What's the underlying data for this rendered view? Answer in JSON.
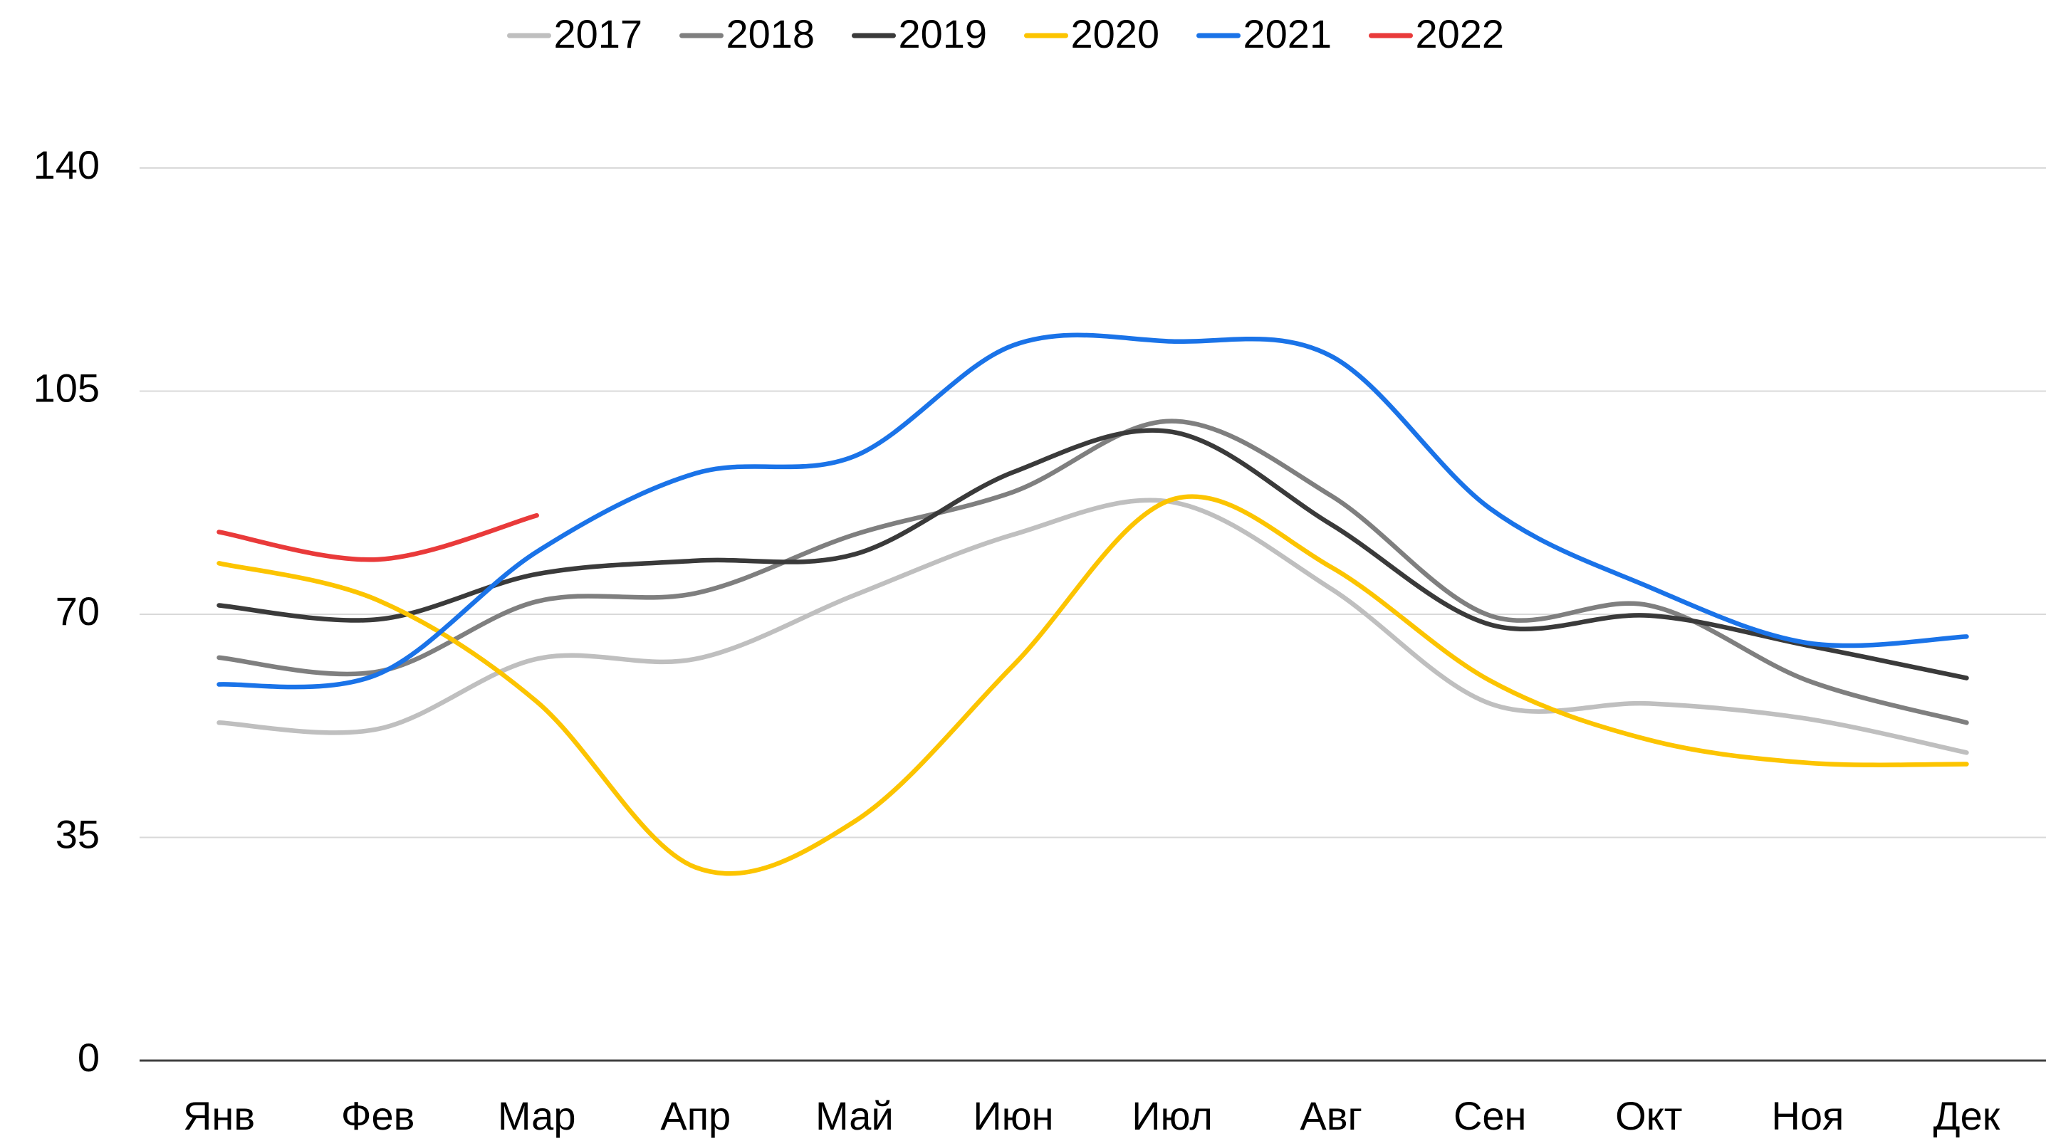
{
  "chart_data": {
    "type": "line",
    "categories": [
      "Янв",
      "Фев",
      "Мар",
      "Апр",
      "Май",
      "Июн",
      "Июл",
      "Авг",
      "Сен",
      "Окт",
      "Ноя",
      "Дек"
    ],
    "series": [
      {
        "name": "2017",
        "color": "#bfbfbf",
        "values": [
          53,
          52,
          63,
          63,
          73,
          82.5,
          87.6,
          74,
          56,
          56,
          53.6,
          48.3
        ]
      },
      {
        "name": "2018",
        "color": "#7f7f7f",
        "values": [
          63.2,
          61,
          72,
          73.3,
          82.5,
          89.2,
          100.3,
          88.6,
          69.8,
          71.4,
          59.6,
          53
        ]
      },
      {
        "name": "2019",
        "color": "#3a3a3a",
        "values": [
          71.4,
          69.2,
          76.3,
          78.4,
          79.4,
          92.3,
          98.6,
          84.1,
          68.4,
          69.8,
          65.1,
          60
        ]
      },
      {
        "name": "2020",
        "color": "#fcc400",
        "values": [
          78,
          72.2,
          56.3,
          30.3,
          37.5,
          62,
          88,
          77.4,
          59.6,
          50.3,
          46.7,
          46.5
        ]
      },
      {
        "name": "2021",
        "color": "#1a73e8",
        "values": [
          59,
          60.6,
          79.8,
          92.1,
          94.8,
          112.2,
          112.8,
          110.5,
          86.6,
          74.3,
          65.5,
          66.5
        ]
      },
      {
        "name": "2022",
        "color": "#e93a3a",
        "values": [
          82.9,
          78.6,
          85.5,
          null,
          null,
          null,
          null,
          null,
          null,
          null,
          null,
          null
        ]
      }
    ],
    "ylim": [
      0,
      140
    ],
    "yticks": [
      0,
      35,
      70,
      105,
      140
    ],
    "grid": true,
    "legend": "top"
  }
}
